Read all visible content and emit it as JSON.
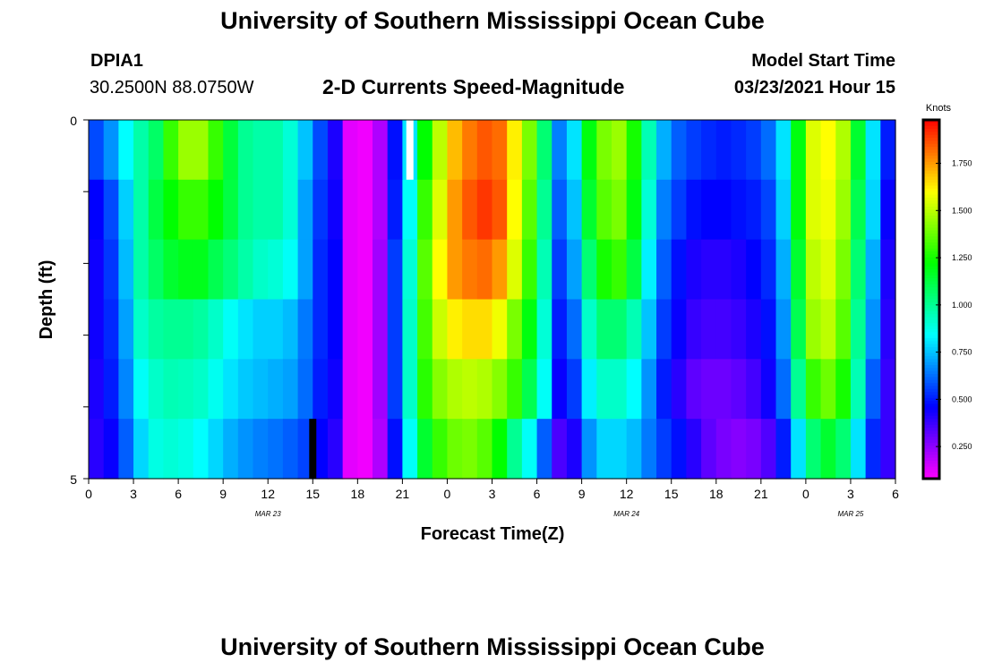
{
  "page": {
    "title_top": "University of Southern Mississippi Ocean Cube",
    "title_bottom": "University of Southern Mississippi Ocean Cube",
    "station_id": "DPIA1",
    "location": "30.2500N 88.0750W",
    "plot_title": "2-D Currents Speed-Magnitude",
    "model_start_label": "Model Start Time",
    "model_start_value": "03/23/2021 Hour 15"
  },
  "chart_data": {
    "type": "heatmap",
    "title": "2-D Currents Speed-Magnitude",
    "xlabel": "Forecast Time(Z)",
    "ylabel": "Depth (ft)",
    "ylim": [
      0,
      5
    ],
    "y_tick_labels": [
      "0",
      "5"
    ],
    "x_tick_labels": [
      "0",
      "3",
      "6",
      "9",
      "12",
      "15",
      "18",
      "21",
      "0",
      "3",
      "6",
      "9",
      "12",
      "15",
      "18",
      "21",
      "0",
      "3",
      "6"
    ],
    "date_labels": [
      {
        "text": "MAR 23",
        "hour_index": 12
      },
      {
        "text": "MAR 24",
        "hour_index": 36
      },
      {
        "text": "MAR 25",
        "hour_index": 51
      }
    ],
    "x_hours": 54,
    "depth_levels": 5,
    "colorbar": {
      "label": "Knots",
      "range": [
        0.08,
        1.98
      ],
      "ticks": [
        "0.250",
        "0.500",
        "0.750",
        "1.000",
        "1.250",
        "1.500",
        "1.750"
      ],
      "tick_values": [
        0.25,
        0.5,
        0.75,
        1.0,
        1.25,
        1.5,
        1.75
      ]
    },
    "values": [
      [
        0.57,
        0.68,
        0.84,
        0.97,
        1.07,
        1.3,
        1.45,
        1.45,
        1.3,
        1.13,
        1.0,
        0.97,
        0.97,
        0.9,
        0.75,
        0.57,
        0.42,
        0.12,
        0.1,
        0.2,
        0.48,
        0.8,
        1.22,
        1.5,
        1.7,
        1.8,
        1.85,
        1.82,
        1.62,
        1.4,
        1.05,
        0.65,
        0.8,
        1.2,
        1.4,
        1.45,
        1.25,
        0.95,
        0.72,
        0.6,
        0.55,
        0.52,
        0.5,
        0.52,
        0.55,
        0.62,
        0.8,
        1.2,
        1.55,
        1.6,
        1.48,
        1.15,
        0.8,
        0.5
      ],
      [
        0.46,
        0.57,
        0.77,
        0.97,
        1.12,
        1.22,
        1.3,
        1.3,
        1.22,
        1.12,
        1.0,
        0.97,
        0.97,
        0.9,
        0.7,
        0.54,
        0.44,
        0.12,
        0.1,
        0.2,
        0.5,
        0.85,
        1.3,
        1.55,
        1.75,
        1.85,
        1.9,
        1.85,
        1.6,
        1.35,
        1.0,
        0.6,
        0.75,
        1.15,
        1.35,
        1.4,
        1.2,
        0.9,
        0.65,
        0.55,
        0.48,
        0.46,
        0.46,
        0.48,
        0.5,
        0.56,
        0.77,
        1.2,
        1.55,
        1.58,
        1.45,
        1.1,
        0.78,
        0.45
      ],
      [
        0.44,
        0.54,
        0.74,
        0.97,
        1.07,
        1.15,
        1.18,
        1.18,
        1.1,
        1.04,
        0.97,
        0.92,
        0.9,
        0.85,
        0.7,
        0.52,
        0.46,
        0.12,
        0.1,
        0.22,
        0.55,
        0.9,
        1.35,
        1.6,
        1.75,
        1.8,
        1.82,
        1.75,
        1.55,
        1.3,
        0.95,
        0.55,
        0.7,
        1.05,
        1.25,
        1.3,
        1.12,
        0.82,
        0.6,
        0.48,
        0.42,
        0.4,
        0.4,
        0.42,
        0.46,
        0.52,
        0.72,
        1.15,
        1.5,
        1.55,
        1.4,
        1.05,
        0.72,
        0.42
      ],
      [
        0.44,
        0.52,
        0.7,
        0.92,
        0.98,
        1.0,
        1.0,
        0.98,
        0.92,
        0.85,
        0.8,
        0.77,
        0.77,
        0.74,
        0.64,
        0.52,
        0.46,
        0.12,
        0.1,
        0.22,
        0.55,
        0.92,
        1.32,
        1.52,
        1.62,
        1.65,
        1.65,
        1.58,
        1.4,
        1.2,
        0.9,
        0.5,
        0.62,
        0.92,
        1.05,
        1.05,
        0.95,
        0.75,
        0.55,
        0.45,
        0.38,
        0.36,
        0.36,
        0.38,
        0.42,
        0.48,
        0.68,
        1.1,
        1.45,
        1.5,
        1.35,
        1.0,
        0.68,
        0.4
      ],
      [
        0.42,
        0.5,
        0.66,
        0.85,
        0.92,
        0.95,
        0.94,
        0.92,
        0.86,
        0.8,
        0.76,
        0.74,
        0.72,
        0.7,
        0.62,
        0.5,
        0.44,
        0.12,
        0.1,
        0.22,
        0.55,
        0.92,
        1.28,
        1.42,
        1.48,
        1.5,
        1.48,
        1.42,
        1.3,
        1.1,
        0.85,
        0.45,
        0.55,
        0.82,
        0.92,
        0.92,
        0.84,
        0.68,
        0.5,
        0.4,
        0.32,
        0.3,
        0.3,
        0.32,
        0.36,
        0.44,
        0.62,
        1.0,
        1.3,
        1.38,
        1.25,
        0.95,
        0.6,
        0.38
      ],
      [
        0.4,
        0.45,
        0.6,
        0.78,
        0.88,
        0.9,
        0.88,
        0.84,
        0.78,
        0.72,
        0.68,
        0.65,
        0.63,
        0.6,
        0.56,
        0.46,
        0.4,
        0.12,
        0.1,
        0.2,
        0.48,
        0.85,
        1.15,
        1.3,
        1.38,
        1.4,
        1.35,
        1.22,
        1.0,
        0.85,
        0.6,
        0.35,
        0.42,
        0.68,
        0.78,
        0.78,
        0.74,
        0.64,
        0.55,
        0.48,
        0.4,
        0.32,
        0.28,
        0.26,
        0.28,
        0.34,
        0.5,
        0.8,
        1.05,
        1.15,
        1.05,
        0.8,
        0.52,
        0.38
      ]
    ],
    "white_marker": {
      "hour": 21.5,
      "depth_level": 0
    },
    "black_marker": {
      "hour": 15,
      "depth_level": 5
    }
  }
}
